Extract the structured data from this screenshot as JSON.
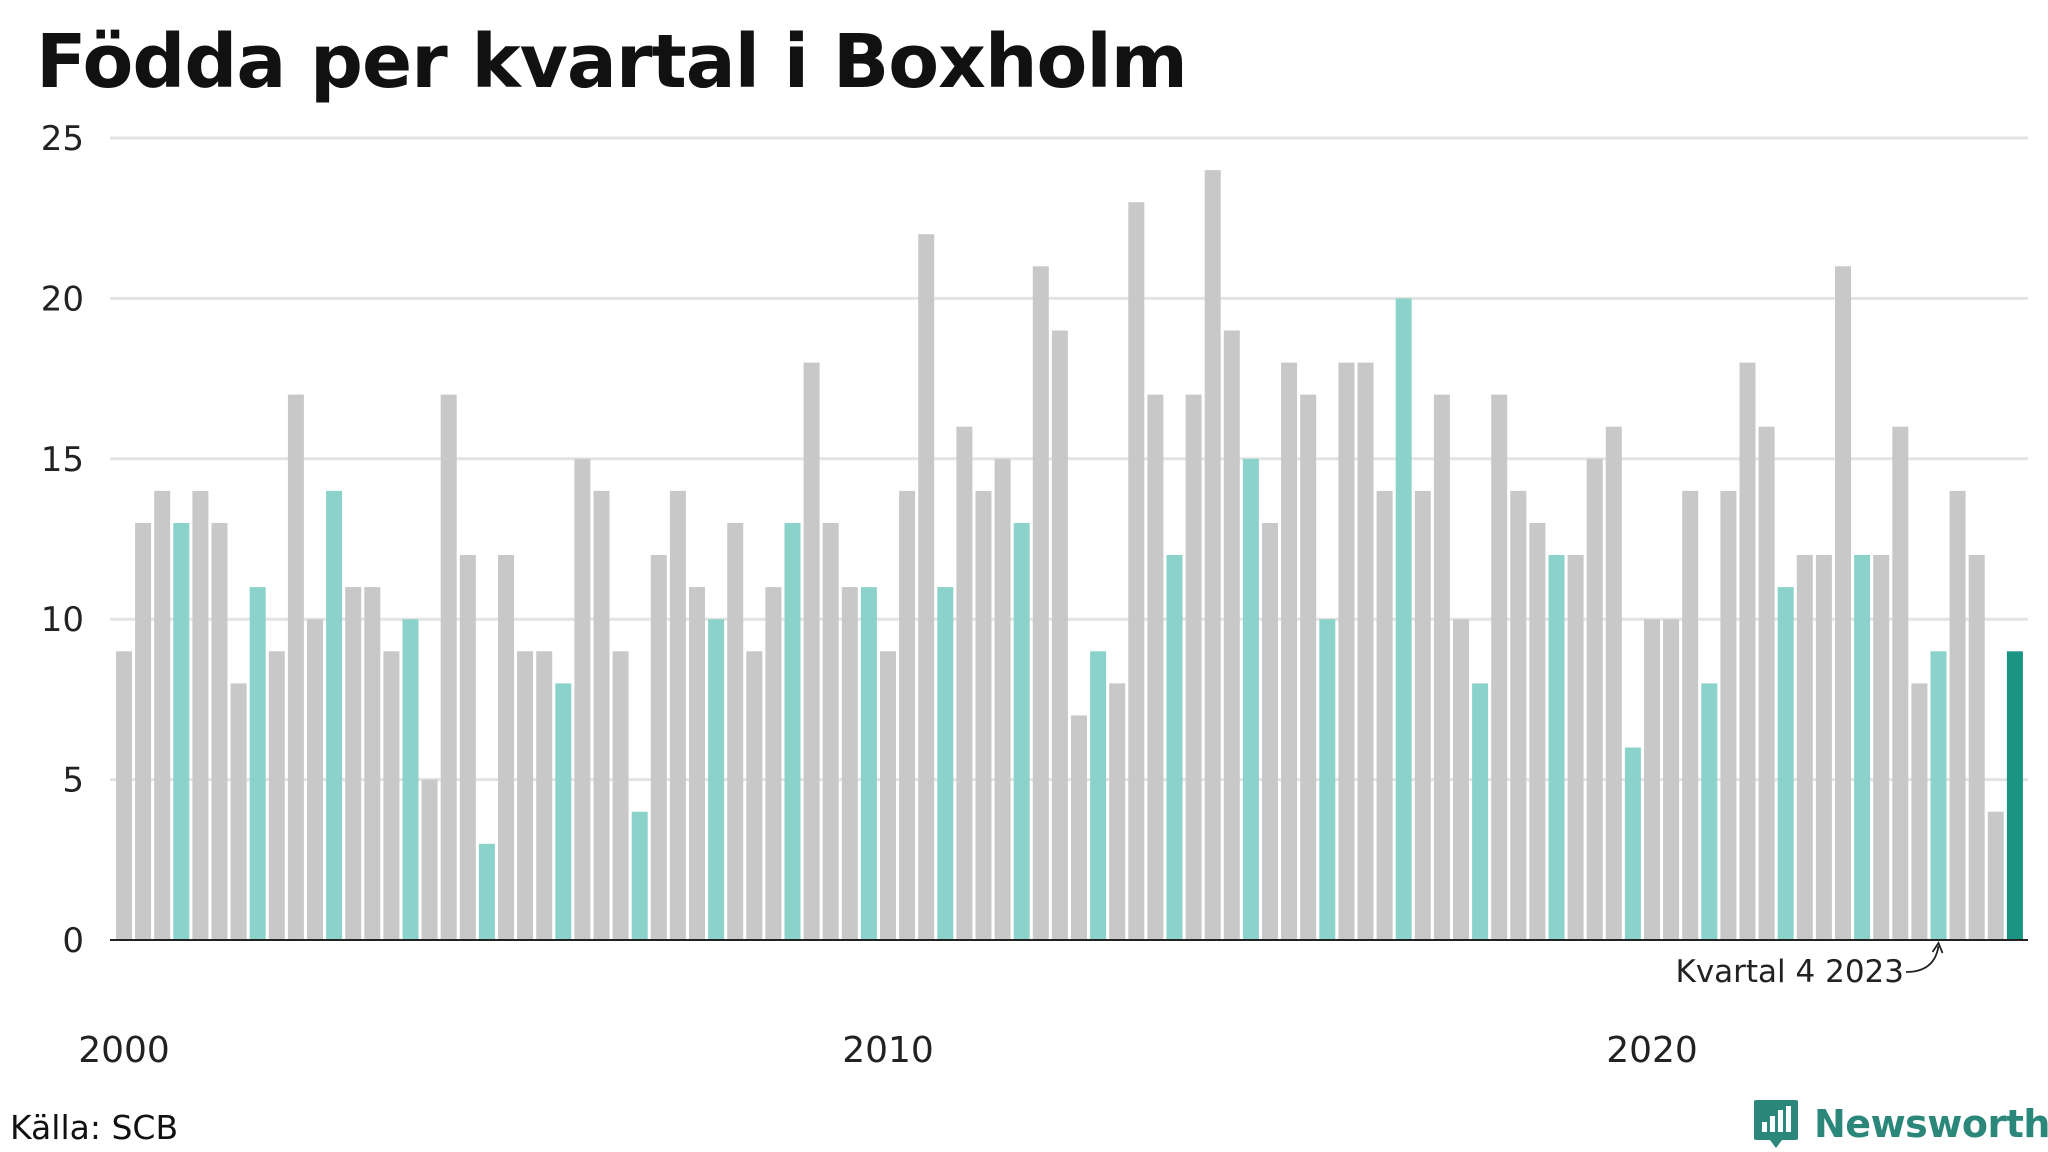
{
  "title": "Födda per kvartal i Boxholm",
  "source": "Källa: SCB",
  "brand": {
    "name": "Newsworthy",
    "icon": "newsworthy-logo-icon"
  },
  "colors": {
    "bar": "#c8c8c8",
    "highlight": "#8bd2ca",
    "latest": "#1a9583",
    "grid": "#e3e3e3",
    "axis": "#222222"
  },
  "chart_data": {
    "type": "bar",
    "title": "Födda per kvartal i Boxholm",
    "xlabel": "",
    "ylabel": "",
    "ylim": [
      0,
      25
    ],
    "yticks": [
      0,
      5,
      10,
      15,
      20,
      25
    ],
    "xtick_labels": [
      {
        "label": "2000",
        "index": 0
      },
      {
        "label": "2010",
        "index": 40
      },
      {
        "label": "2020",
        "index": 80
      }
    ],
    "grid": true,
    "start_year": 2000,
    "start_quarter": 1,
    "highlight_quarter": 4,
    "values": [
      9,
      13,
      14,
      13,
      14,
      13,
      8,
      11,
      9,
      17,
      10,
      14,
      11,
      11,
      9,
      10,
      5,
      17,
      12,
      3,
      12,
      9,
      9,
      8,
      15,
      14,
      9,
      4,
      12,
      14,
      11,
      10,
      13,
      9,
      11,
      13,
      18,
      13,
      11,
      11,
      9,
      14,
      22,
      11,
      16,
      14,
      15,
      13,
      21,
      19,
      7,
      9,
      8,
      23,
      17,
      12,
      17,
      24,
      19,
      15,
      13,
      18,
      17,
      10,
      18,
      18,
      14,
      20,
      14,
      17,
      10,
      8,
      17,
      14,
      13,
      12,
      12,
      15,
      16,
      6,
      10,
      10,
      14,
      8,
      14,
      18,
      16,
      11,
      12,
      12,
      21,
      12,
      12,
      16,
      8,
      9,
      14,
      12,
      4,
      9
    ],
    "annotation": {
      "text": "Kvartal 4 2023",
      "index": 95
    }
  }
}
